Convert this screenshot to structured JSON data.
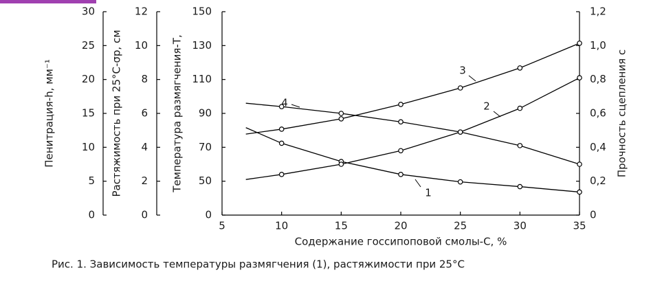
{
  "chart_data": {
    "type": "line",
    "x_title": "Содержание госсипоповой смолы-С, %",
    "caption": "Рис. 1. Зависимость температуры размягчения (1), растяжимости при 25°С",
    "x": [
      7,
      10,
      15,
      20,
      25,
      30,
      35
    ],
    "xlim": [
      5,
      35
    ],
    "xticks": [
      5,
      10,
      15,
      20,
      25,
      30,
      35
    ],
    "y_axes": [
      {
        "title": "Пенитрация-h, мм⁻¹",
        "ylim": [
          0,
          30
        ],
        "yticks": [
          0,
          5,
          10,
          15,
          20,
          25,
          30
        ]
      },
      {
        "title": "Растяжимость при 25°С-σр, см",
        "ylim": [
          0,
          12
        ],
        "yticks": [
          0,
          2,
          4,
          6,
          8,
          10,
          12
        ]
      },
      {
        "title": "Температура размягчения-Т,",
        "ylim": [
          30,
          150
        ],
        "yticks": [
          {
            "value": 30,
            "label": "0"
          },
          50,
          70,
          90,
          110,
          130,
          150
        ]
      },
      {
        "title": "Прочность сцепления с",
        "ylim": [
          0,
          1.2
        ],
        "yticks": [
          0,
          {
            "value": 0.2,
            "label": "0,2"
          },
          {
            "value": 0.4,
            "label": "0,4"
          },
          {
            "value": 0.6,
            "label": "0,6"
          },
          {
            "value": 0.8,
            "label": "0,8"
          },
          {
            "value": 1.0,
            "label": "1,0"
          },
          {
            "value": 1.2,
            "label": "1,2"
          }
        ]
      }
    ],
    "series": [
      {
        "name": "1",
        "color": "#000000",
        "axis": 0,
        "values": [
          12.9,
          10.6,
          7.9,
          6.0,
          4.9,
          4.2,
          3.4
        ]
      },
      {
        "name": "2",
        "color": "#000000",
        "axis": 3,
        "values": [
          0.21,
          0.24,
          0.3,
          0.38,
          0.49,
          0.63,
          0.81
        ]
      },
      {
        "name": "3",
        "color": "#000000",
        "axis": 2,
        "values": [
          77.8,
          80.7,
          86.8,
          95.3,
          105,
          116.8,
          131.4
        ]
      },
      {
        "name": "4",
        "color": "#000000",
        "axis": 1,
        "values": [
          6.6,
          6.4,
          6.0,
          5.5,
          4.9,
          4.1,
          3.0
        ]
      }
    ]
  }
}
